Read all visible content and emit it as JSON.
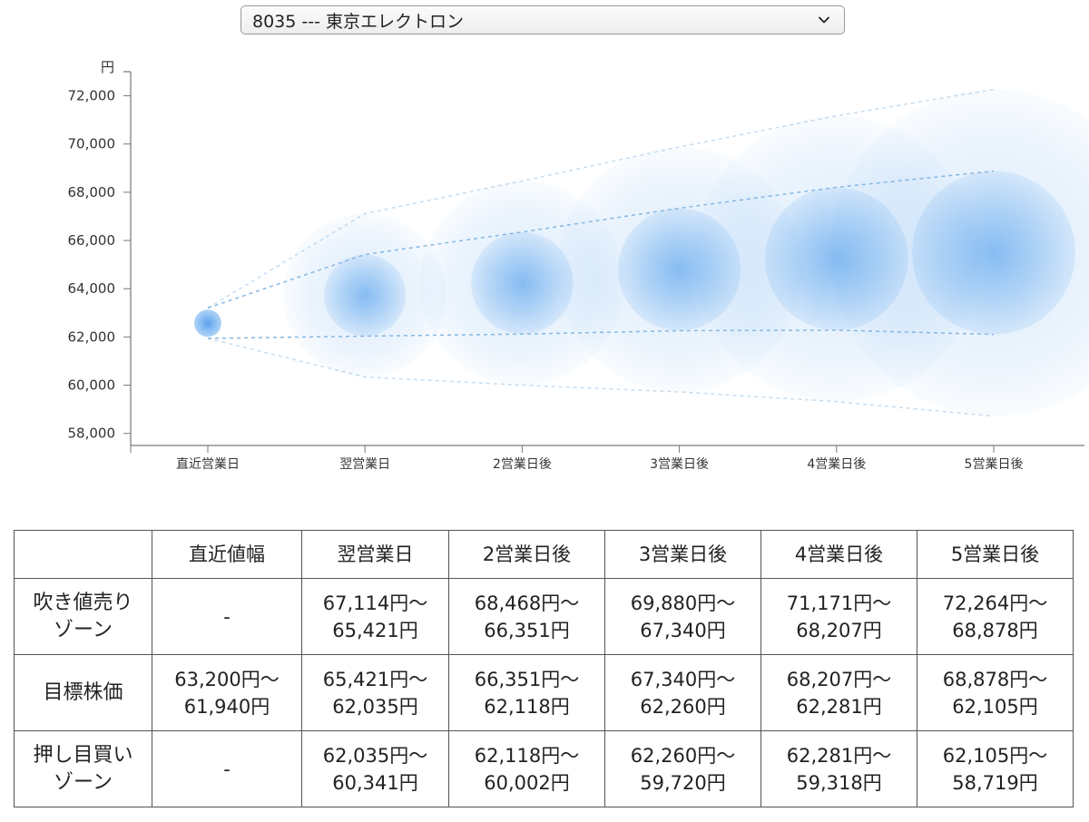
{
  "selector": {
    "selected": "8035 --- 東京エレクトロン"
  },
  "chart_data": {
    "type": "scatter",
    "ylabel": "円",
    "ylim": [
      57500,
      73000
    ],
    "yticks": [
      "58,000",
      "60,000",
      "62,000",
      "64,000",
      "66,000",
      "68,000",
      "70,000",
      "72,000"
    ],
    "ytick_values": [
      58000,
      60000,
      62000,
      64000,
      66000,
      68000,
      70000,
      72000
    ],
    "categories": [
      "直近営業日",
      "翌営業日",
      "2営業日後",
      "3営業日後",
      "4営業日後",
      "5営業日後"
    ],
    "target_center": [
      62570,
      63728,
      64235,
      64800,
      65244,
      65492
    ],
    "target_upper": [
      63200,
      65421,
      66351,
      67340,
      68207,
      68878
    ],
    "target_lower": [
      61940,
      62035,
      62118,
      62260,
      62281,
      62105
    ],
    "sell_zone_upper": [
      63200,
      67114,
      68468,
      69880,
      71171,
      72264
    ],
    "buy_zone_lower": [
      61940,
      60341,
      60002,
      59720,
      59318,
      58719
    ],
    "colors": {
      "bubble": "#3d93ea",
      "dashed_line": "#7fb3e0",
      "axis": "#777777"
    }
  },
  "table": {
    "headers": [
      "",
      "直近値幅",
      "翌営業日",
      "2営業日後",
      "3営業日後",
      "4営業日後",
      "5営業日後"
    ],
    "rows": [
      {
        "label": [
          "吹き値売り",
          "ゾーン"
        ],
        "cells": [
          [
            "-"
          ],
          [
            "67,114円〜",
            "65,421円"
          ],
          [
            "68,468円〜",
            "66,351円"
          ],
          [
            "69,880円〜",
            "67,340円"
          ],
          [
            "71,171円〜",
            "68,207円"
          ],
          [
            "72,264円〜",
            "68,878円"
          ]
        ]
      },
      {
        "label": [
          "目標株価"
        ],
        "cells": [
          [
            "63,200円〜",
            "61,940円"
          ],
          [
            "65,421円〜",
            "62,035円"
          ],
          [
            "66,351円〜",
            "62,118円"
          ],
          [
            "67,340円〜",
            "62,260円"
          ],
          [
            "68,207円〜",
            "62,281円"
          ],
          [
            "68,878円〜",
            "62,105円"
          ]
        ]
      },
      {
        "label": [
          "押し目買い",
          "ゾーン"
        ],
        "cells": [
          [
            "-"
          ],
          [
            "62,035円〜",
            "60,341円"
          ],
          [
            "62,118円〜",
            "60,002円"
          ],
          [
            "62,260円〜",
            "59,720円"
          ],
          [
            "62,281円〜",
            "59,318円"
          ],
          [
            "62,105円〜",
            "58,719円"
          ]
        ]
      }
    ]
  }
}
